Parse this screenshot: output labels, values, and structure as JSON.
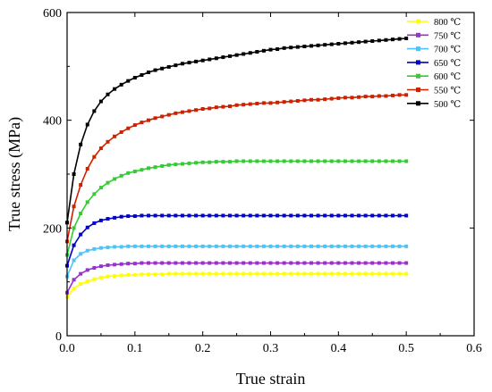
{
  "chart_data": {
    "type": "line",
    "xlabel": "True strain",
    "ylabel": "True stress (MPa)",
    "xlim": [
      0.0,
      0.6
    ],
    "ylim": [
      0,
      600
    ],
    "x_ticks": [
      "0.0",
      "0.1",
      "0.2",
      "0.3",
      "0.4",
      "0.5",
      "0.6"
    ],
    "y_ticks": [
      "0",
      "200",
      "400",
      "600"
    ],
    "legend_position": "top-right",
    "grid": false,
    "x": [
      0.0,
      0.01,
      0.02,
      0.03,
      0.04,
      0.05,
      0.06,
      0.07,
      0.08,
      0.09,
      0.1,
      0.11,
      0.12,
      0.13,
      0.14,
      0.15,
      0.16,
      0.17,
      0.18,
      0.19,
      0.2,
      0.21,
      0.22,
      0.23,
      0.24,
      0.25,
      0.26,
      0.27,
      0.28,
      0.29,
      0.3,
      0.31,
      0.32,
      0.33,
      0.34,
      0.35,
      0.36,
      0.37,
      0.38,
      0.39,
      0.4,
      0.41,
      0.42,
      0.43,
      0.44,
      0.45,
      0.46,
      0.47,
      0.48,
      0.49,
      0.5
    ],
    "series": [
      {
        "name": "800 ℃",
        "color": "#ffff00",
        "values": [
          72,
          88,
          96,
          101,
          105,
          108,
          110,
          111,
          112,
          113,
          113,
          114,
          114,
          114,
          114,
          115,
          115,
          115,
          115,
          115,
          115,
          115,
          115,
          115,
          115,
          115,
          115,
          115,
          115,
          115,
          115,
          115,
          115,
          115,
          115,
          115,
          115,
          115,
          115,
          115,
          115,
          115,
          115,
          115,
          115,
          115,
          115,
          115,
          115,
          115,
          115
        ]
      },
      {
        "name": "750 ℃",
        "color": "#9932cc",
        "values": [
          80,
          104,
          115,
          122,
          126,
          129,
          131,
          132,
          133,
          134,
          134,
          135,
          135,
          135,
          135,
          135,
          135,
          135,
          135,
          135,
          135,
          135,
          135,
          135,
          135,
          135,
          135,
          135,
          135,
          135,
          135,
          135,
          135,
          135,
          135,
          135,
          135,
          135,
          135,
          135,
          135,
          135,
          135,
          135,
          135,
          135,
          135,
          135,
          135,
          135,
          135
        ]
      },
      {
        "name": "700 ℃",
        "color": "#4fc3f7",
        "values": [
          110,
          140,
          152,
          158,
          161,
          163,
          164,
          165,
          165,
          166,
          166,
          166,
          166,
          166,
          166,
          166,
          166,
          166,
          166,
          166,
          166,
          166,
          166,
          166,
          166,
          166,
          166,
          166,
          166,
          166,
          166,
          166,
          166,
          166,
          166,
          166,
          166,
          166,
          166,
          166,
          166,
          166,
          166,
          166,
          166,
          166,
          166,
          166,
          166,
          166,
          166
        ]
      },
      {
        "name": "650 ℃",
        "color": "#0000cc",
        "values": [
          130,
          168,
          188,
          201,
          209,
          214,
          217,
          219,
          221,
          222,
          222,
          223,
          223,
          223,
          223,
          223,
          223,
          223,
          223,
          223,
          223,
          223,
          223,
          223,
          223,
          223,
          223,
          223,
          223,
          223,
          223,
          223,
          223,
          223,
          223,
          223,
          223,
          223,
          223,
          223,
          223,
          223,
          223,
          223,
          223,
          223,
          223,
          223,
          223,
          223,
          223
        ]
      },
      {
        "name": "600 ℃",
        "color": "#33cc33",
        "values": [
          150,
          200,
          227,
          248,
          263,
          275,
          284,
          291,
          297,
          302,
          305,
          308,
          311,
          313,
          315,
          317,
          318,
          319,
          320,
          321,
          322,
          322,
          323,
          323,
          323,
          324,
          324,
          324,
          324,
          324,
          324,
          324,
          324,
          324,
          324,
          324,
          324,
          324,
          324,
          324,
          324,
          324,
          324,
          324,
          324,
          324,
          324,
          324,
          324,
          324,
          324
        ]
      },
      {
        "name": "550 ℃",
        "color": "#cc2200",
        "values": [
          175,
          240,
          280,
          310,
          332,
          348,
          360,
          370,
          378,
          385,
          391,
          396,
          400,
          404,
          407,
          410,
          413,
          415,
          417,
          419,
          421,
          422,
          424,
          425,
          426,
          428,
          429,
          430,
          431,
          432,
          432,
          433,
          434,
          435,
          436,
          437,
          438,
          438,
          439,
          440,
          441,
          442,
          442,
          443,
          444,
          444,
          445,
          445,
          446,
          447,
          447
        ]
      },
      {
        "name": "500 ℃",
        "color": "#000000",
        "values": [
          210,
          300,
          355,
          392,
          417,
          435,
          448,
          458,
          466,
          473,
          479,
          484,
          489,
          493,
          496,
          499,
          502,
          505,
          507,
          509,
          511,
          513,
          515,
          517,
          519,
          521,
          523,
          525,
          527,
          529,
          531,
          532,
          534,
          535,
          536,
          537,
          538,
          539,
          540,
          541,
          542,
          543,
          544,
          545,
          546,
          547,
          548,
          549,
          550,
          551,
          552
        ]
      }
    ]
  }
}
